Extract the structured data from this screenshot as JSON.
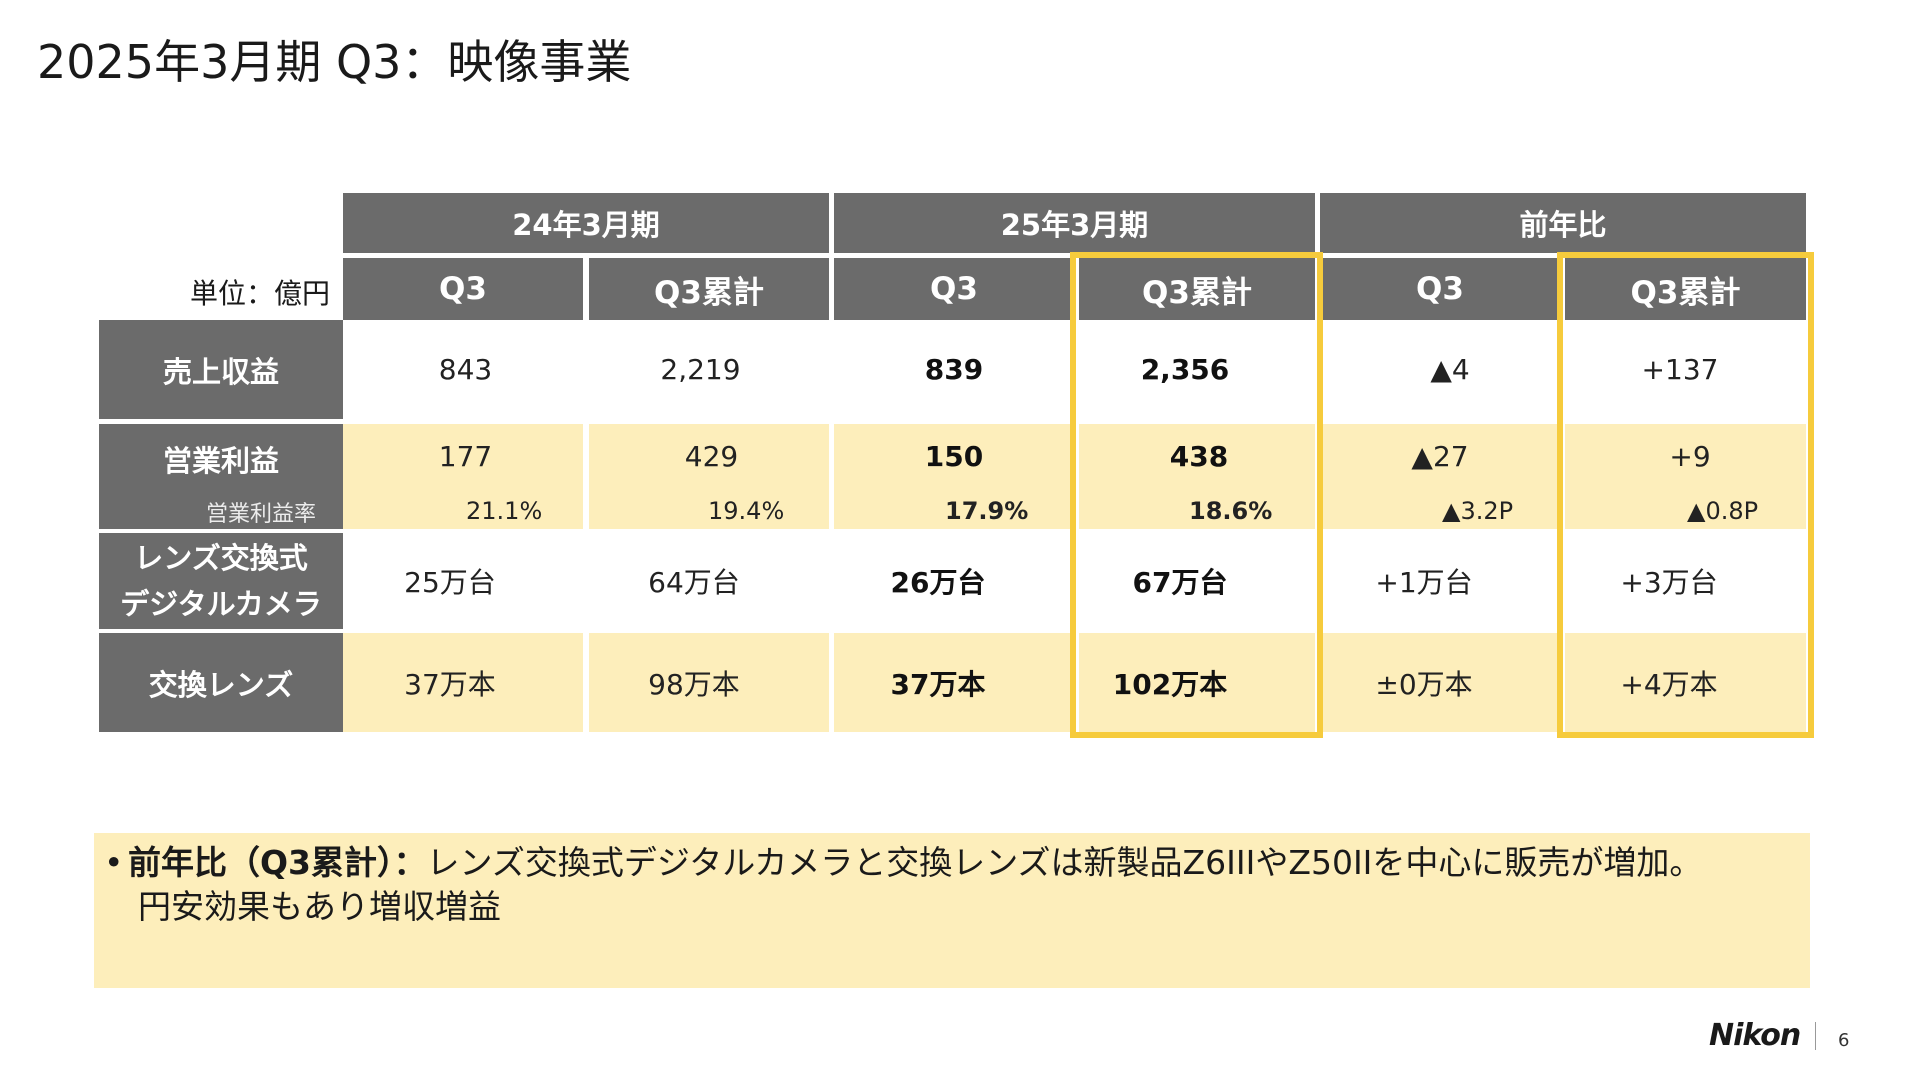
{
  "title": "2025年3月期 Q3：映像事業",
  "table": {
    "unit_label": "単位：億円",
    "groups": [
      "24年3月期",
      "25年3月期",
      "前年比"
    ],
    "subheaders": [
      "Q3",
      "Q3累計",
      "Q3",
      "Q3累計",
      "Q3",
      "Q3累計"
    ],
    "rows": {
      "revenue": {
        "label": "売上収益",
        "values": [
          "843",
          "2,219",
          "839",
          "2,356",
          "▲4",
          "+137"
        ]
      },
      "operating_profit": {
        "label": "営業利益",
        "values": [
          "177",
          "429",
          "150",
          "438",
          "▲27",
          "+9"
        ],
        "margin_label": "営業利益率",
        "margin_values": [
          "21.1%",
          "19.4%",
          "17.9%",
          "18.6%",
          "▲3.2P",
          "▲0.8P"
        ]
      },
      "cameras": {
        "label_line1": "レンズ交換式",
        "label_line2": "デジタルカメラ",
        "values": [
          "25万台",
          "64万台",
          "26万台",
          "67万台",
          "+1万台",
          "+3万台"
        ]
      },
      "lenses": {
        "label": "交換レンズ",
        "values": [
          "37万本",
          "98万本",
          "37万本",
          "102万本",
          "±0万本",
          "+4万本"
        ]
      }
    }
  },
  "note": {
    "bullet": "•",
    "lead": "前年比（Q3累計）：",
    "text": "レンズ交換式デジタルカメラと交換レンズは新製品Z6IIIやZ50IIを中心に販売が増加。",
    "text2": "円安効果もあり増収増益"
  },
  "footer": {
    "logo": "Nikon",
    "page": "6"
  },
  "colors": {
    "header_gray": "#6b6b6b",
    "highlight_yellow": "#f6cb3c",
    "row_cream": "#fdeebb"
  }
}
